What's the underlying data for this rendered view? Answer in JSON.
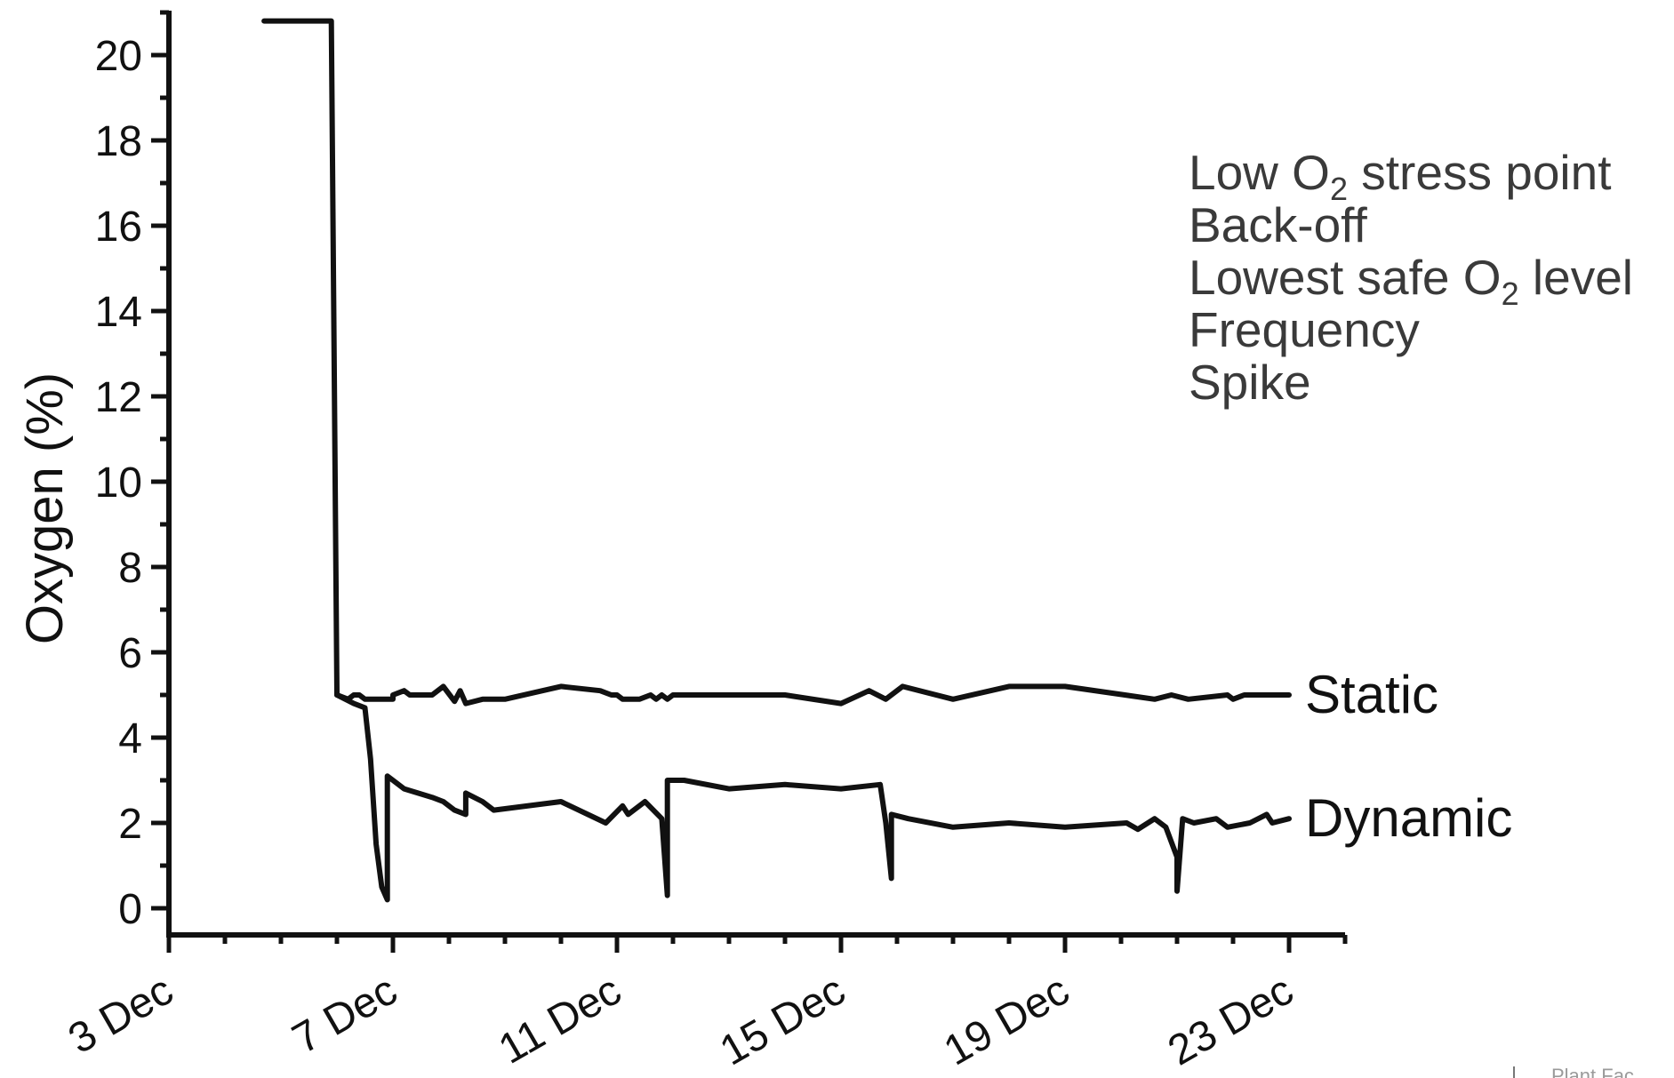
{
  "chart_data": {
    "type": "line",
    "title": "",
    "xlabel": "",
    "ylabel": "Oxygen (%)",
    "ylim": [
      0,
      20
    ],
    "x_ticks": [
      "3 Dec",
      "7 Dec",
      "11 Dec",
      "15 Dec",
      "19 Dec",
      "23 Dec"
    ],
    "y_ticks": [
      "0",
      "2",
      "4",
      "6",
      "8",
      "10",
      "12",
      "14",
      "16",
      "18",
      "20"
    ],
    "grid": false,
    "line_color": "#111111",
    "annotations": [
      {
        "parts": [
          {
            "text": "Low O"
          },
          {
            "text": "2",
            "sub": true
          },
          {
            "text": " stress point"
          }
        ]
      },
      {
        "parts": [
          {
            "text": "Back-off"
          }
        ]
      },
      {
        "parts": [
          {
            "text": "Lowest safe O"
          },
          {
            "text": "2",
            "sub": true
          },
          {
            "text": " level"
          }
        ]
      },
      {
        "parts": [
          {
            "text": "Frequency"
          }
        ]
      },
      {
        "parts": [
          {
            "text": "Spike"
          }
        ]
      }
    ],
    "footer_text": "Plant Fac",
    "series": [
      {
        "name": "Static",
        "points": [
          [
            "2015-12-04T16:48",
            20.8
          ],
          [
            "2015-12-05T21:36",
            20.8
          ],
          [
            "2015-12-06T00:00",
            5.0
          ],
          [
            "2015-12-06T04:48",
            4.9
          ],
          [
            "2015-12-06T07:12",
            5.0
          ],
          [
            "2015-12-06T09:36",
            5.0
          ],
          [
            "2015-12-06T12:00",
            4.9
          ],
          [
            "2015-12-06T19:12",
            4.9
          ],
          [
            "2015-12-07T00:00",
            4.9
          ],
          [
            "2015-12-07T00:00",
            5.0
          ],
          [
            "2015-12-07T04:48",
            5.1
          ],
          [
            "2015-12-07T07:12",
            5.0
          ],
          [
            "2015-12-07T16:48",
            5.0
          ],
          [
            "2015-12-07T21:36",
            5.2
          ],
          [
            "2015-12-08T02:24",
            4.85
          ],
          [
            "2015-12-08T04:48",
            5.1
          ],
          [
            "2015-12-08T07:12",
            4.8
          ],
          [
            "2015-12-08T14:24",
            4.9
          ],
          [
            "2015-12-09T00:00",
            4.9
          ],
          [
            "2015-12-10T00:00",
            5.2
          ],
          [
            "2015-12-10T16:48",
            5.1
          ],
          [
            "2015-12-10T21:36",
            5.0
          ],
          [
            "2015-12-11T00:00",
            5.0
          ],
          [
            "2015-12-11T02:24",
            4.9
          ],
          [
            "2015-12-11T09:36",
            4.9
          ],
          [
            "2015-12-11T14:24",
            5.0
          ],
          [
            "2015-12-11T16:48",
            4.9
          ],
          [
            "2015-12-11T19:12",
            5.0
          ],
          [
            "2015-12-11T21:36",
            4.9
          ],
          [
            "2015-12-12T00:00",
            5.0
          ],
          [
            "2015-12-14T00:00",
            5.0
          ],
          [
            "2015-12-15T00:00",
            4.8
          ],
          [
            "2015-12-15T12:00",
            5.1
          ],
          [
            "2015-12-15T19:12",
            4.9
          ],
          [
            "2015-12-16T02:24",
            5.2
          ],
          [
            "2015-12-17T00:00",
            4.9
          ],
          [
            "2015-12-18T00:00",
            5.2
          ],
          [
            "2015-12-19T00:00",
            5.2
          ],
          [
            "2015-12-20T14:24",
            4.9
          ],
          [
            "2015-12-20T21:36",
            5.0
          ],
          [
            "2015-12-21T04:48",
            4.9
          ],
          [
            "2015-12-21T21:36",
            5.0
          ],
          [
            "2015-12-22T00:00",
            4.9
          ],
          [
            "2015-12-22T04:48",
            5.0
          ],
          [
            "2015-12-23T00:00",
            5.0
          ]
        ]
      },
      {
        "name": "Dynamic",
        "points": [
          [
            "2015-12-06T00:00",
            5.0
          ],
          [
            "2015-12-06T07:12",
            4.8
          ],
          [
            "2015-12-06T12:00",
            4.7
          ],
          [
            "2015-12-06T14:24",
            3.5
          ],
          [
            "2015-12-06T16:48",
            1.5
          ],
          [
            "2015-12-06T19:12",
            0.5
          ],
          [
            "2015-12-06T21:36",
            0.2
          ],
          [
            "2015-12-06T21:36",
            3.1
          ],
          [
            "2015-12-07T00:00",
            3.0
          ],
          [
            "2015-12-07T04:48",
            2.8
          ],
          [
            "2015-12-07T16:48",
            2.6
          ],
          [
            "2015-12-07T21:36",
            2.5
          ],
          [
            "2015-12-08T02:24",
            2.3
          ],
          [
            "2015-12-08T07:12",
            2.2
          ],
          [
            "2015-12-08T07:12",
            2.7
          ],
          [
            "2015-12-08T14:24",
            2.5
          ],
          [
            "2015-12-08T19:12",
            2.3
          ],
          [
            "2015-12-10T00:00",
            2.5
          ],
          [
            "2015-12-10T19:12",
            2.0
          ],
          [
            "2015-12-11T02:24",
            2.4
          ],
          [
            "2015-12-11T04:48",
            2.2
          ],
          [
            "2015-12-11T12:00",
            2.5
          ],
          [
            "2015-12-11T19:12",
            2.1
          ],
          [
            "2015-12-11T21:36",
            0.3
          ],
          [
            "2015-12-11T21:36",
            3.0
          ],
          [
            "2015-12-12T04:48",
            3.0
          ],
          [
            "2015-12-13T00:00",
            2.8
          ],
          [
            "2015-12-14T00:00",
            2.9
          ],
          [
            "2015-12-15T00:00",
            2.8
          ],
          [
            "2015-12-15T16:48",
            2.9
          ],
          [
            "2015-12-15T19:12",
            2.0
          ],
          [
            "2015-12-15T21:36",
            0.7
          ],
          [
            "2015-12-15T21:36",
            2.2
          ],
          [
            "2015-12-16T04:48",
            2.1
          ],
          [
            "2015-12-17T00:00",
            1.9
          ],
          [
            "2015-12-18T00:00",
            2.0
          ],
          [
            "2015-12-19T00:00",
            1.9
          ],
          [
            "2015-12-20T02:24",
            2.0
          ],
          [
            "2015-12-20T07:12",
            1.85
          ],
          [
            "2015-12-20T14:24",
            2.1
          ],
          [
            "2015-12-20T19:12",
            1.9
          ],
          [
            "2015-12-21T00:00",
            1.2
          ],
          [
            "2015-12-21T00:00",
            0.4
          ],
          [
            "2015-12-21T02:24",
            2.1
          ],
          [
            "2015-12-21T07:12",
            2.0
          ],
          [
            "2015-12-21T16:48",
            2.1
          ],
          [
            "2015-12-21T21:36",
            1.9
          ],
          [
            "2015-12-22T07:12",
            2.0
          ],
          [
            "2015-12-22T14:24",
            2.2
          ],
          [
            "2015-12-22T16:48",
            2.0
          ],
          [
            "2015-12-23T00:00",
            2.1
          ]
        ]
      }
    ]
  }
}
